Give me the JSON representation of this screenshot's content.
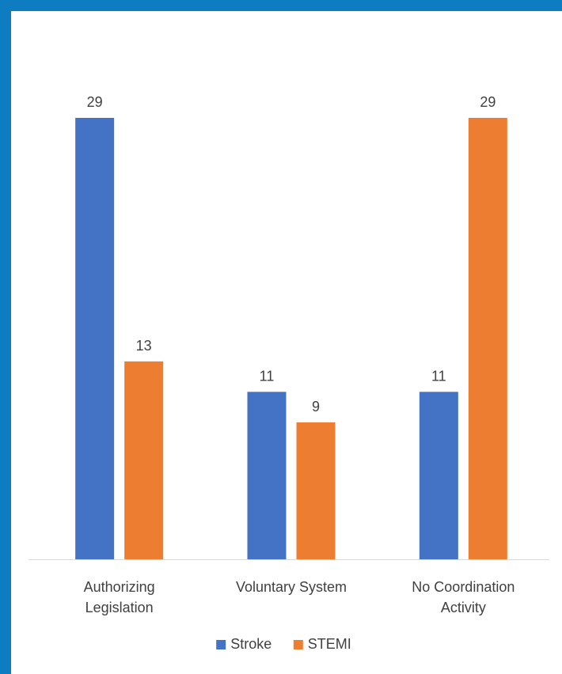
{
  "chart_data": {
    "type": "bar",
    "categories": [
      [
        "Authorizing",
        "Legislation"
      ],
      [
        "Voluntary System"
      ],
      [
        "No Coordination",
        "Activity"
      ]
    ],
    "series": [
      {
        "name": "Stroke",
        "values": [
          29,
          11,
          11
        ],
        "color": "#4472c4"
      },
      {
        "name": "STEMI",
        "values": [
          13,
          9,
          29
        ],
        "color": "#ed7d31"
      }
    ],
    "ylim": [
      0,
      29
    ],
    "grid": false,
    "legend_position": "bottom",
    "data_labels": true
  },
  "colors": {
    "frame": "#0e7cc0",
    "background": "#ffffff",
    "axis": "#d9d9d9",
    "text": "#404040"
  }
}
